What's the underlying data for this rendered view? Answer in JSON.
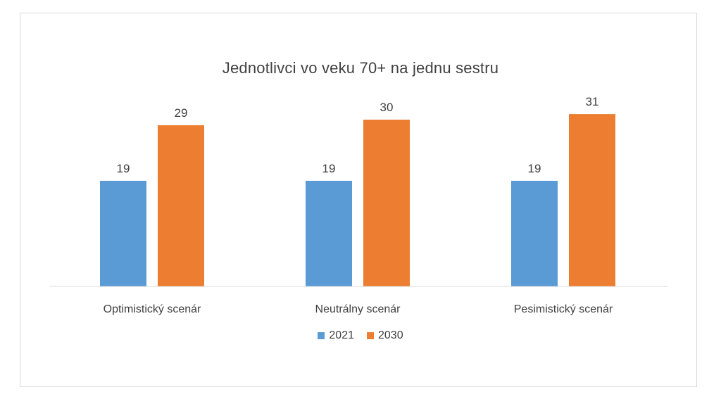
{
  "chart_data": {
    "type": "bar",
    "title": "Jednotlivci vo veku 70+ na jednu sestru",
    "xlabel": "",
    "ylabel": "",
    "categories": [
      "Optimistický scenár",
      "Neutrálny scenár",
      "Pesimistický scenár"
    ],
    "series": [
      {
        "name": "2021",
        "values": [
          19,
          19,
          19
        ],
        "color": "#5b9bd5"
      },
      {
        "name": "2030",
        "values": [
          29,
          30,
          31
        ],
        "color": "#ed7d31"
      }
    ],
    "ylim": [
      0,
      35
    ],
    "grid": false,
    "legend": "bottom"
  }
}
